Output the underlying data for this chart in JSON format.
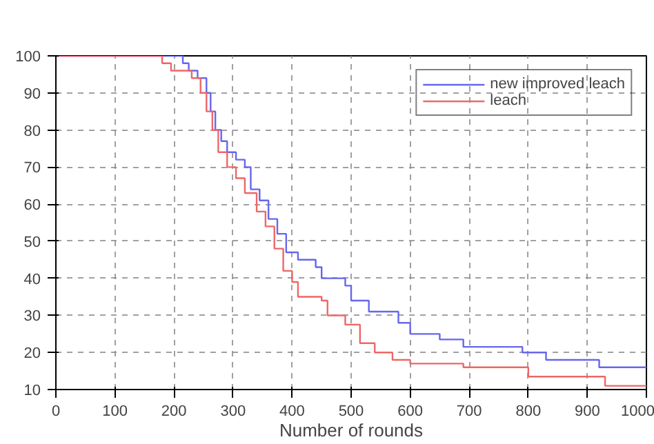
{
  "chart_data": {
    "type": "step",
    "xlabel": "Number of rounds",
    "xlim": [
      0,
      1000
    ],
    "xticks": [
      0,
      100,
      200,
      300,
      400,
      500,
      600,
      700,
      800,
      900,
      1000
    ],
    "ylim": [
      10,
      100
    ],
    "yticks": [
      10,
      20,
      30,
      40,
      50,
      60,
      70,
      80,
      90,
      100
    ],
    "grid": true,
    "legend": "top right",
    "line_style": "solid",
    "series": [
      {
        "name": "new improved leach",
        "color": "#6666ee",
        "x": [
          0,
          215,
          225,
          240,
          255,
          262,
          270,
          280,
          290,
          305,
          320,
          330,
          345,
          360,
          375,
          390,
          410,
          440,
          450,
          490,
          500,
          530,
          580,
          600,
          650,
          690,
          790,
          830,
          920,
          1000
        ],
        "values": [
          100,
          98,
          96,
          94,
          90,
          85,
          80,
          77,
          74,
          72,
          70,
          64,
          61,
          56,
          52,
          47,
          45,
          43,
          40,
          38,
          34,
          31,
          28,
          25,
          23.5,
          21.5,
          20,
          18,
          16,
          16
        ]
      },
      {
        "name": "leach",
        "color": "#ee6666",
        "x": [
          0,
          180,
          195,
          230,
          245,
          255,
          265,
          275,
          290,
          305,
          320,
          340,
          355,
          370,
          385,
          400,
          410,
          450,
          460,
          490,
          515,
          540,
          570,
          600,
          690,
          800,
          930,
          1000
        ],
        "values": [
          100,
          98,
          96,
          94,
          90,
          85,
          80,
          74,
          70,
          67,
          63,
          58,
          54,
          48,
          42,
          39,
          35,
          34,
          30,
          27.5,
          22.5,
          20,
          18,
          17,
          16,
          13.5,
          11,
          11
        ]
      }
    ]
  }
}
